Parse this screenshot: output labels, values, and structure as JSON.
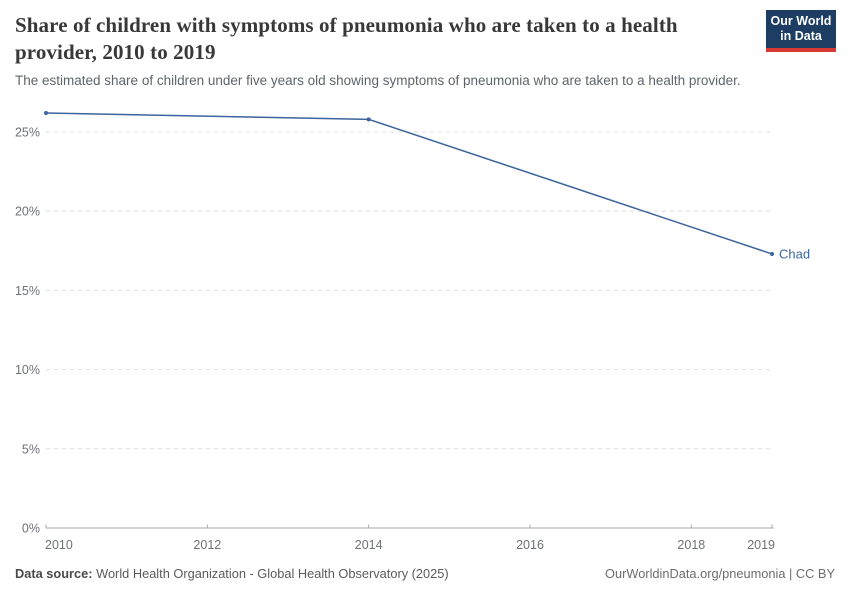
{
  "header": {
    "title": "Share of children with symptoms of pneumonia who are taken to a health provider, 2010 to 2019",
    "subtitle": "The estimated share of children under five years old showing symptoms of pneumonia who are taken to a health provider.",
    "logo_line1": "Our World",
    "logo_line2": "in Data"
  },
  "chart_data": {
    "type": "line",
    "title": "Share of children with symptoms of pneumonia who are taken to a health provider, 2010 to 2019",
    "xlabel": "",
    "ylabel": "",
    "xlim": [
      2010,
      2019
    ],
    "ylim": [
      0,
      25
    ],
    "grid": "horizontal-dashed",
    "legend_position": "end-of-line-label",
    "x_ticks": [
      2010,
      2012,
      2014,
      2016,
      2018,
      2019
    ],
    "x_tick_labels": [
      "2010",
      "2012",
      "2014",
      "2016",
      "2018",
      "2019"
    ],
    "y_ticks": [
      0,
      5,
      10,
      15,
      20,
      25
    ],
    "y_tick_labels": [
      "0%",
      "5%",
      "10%",
      "15%",
      "20%",
      "25%"
    ],
    "series": [
      {
        "name": "Chad",
        "color": "#3d649d",
        "x": [
          2010,
          2014,
          2019
        ],
        "values": [
          26.2,
          25.8,
          17.3
        ]
      }
    ]
  },
  "footer": {
    "datasource_label": "Data source:",
    "datasource_text": "World Health Organization - Global Health Observatory (2025)",
    "credit": "OurWorldinData.org/pneumonia | CC BY"
  },
  "colors": {
    "line": "#3d649d",
    "grid": "#dedede",
    "axis": "#a8aaad",
    "tick_text": "#6e7179",
    "title_text": "#383838",
    "subtitle_text": "#5f646b",
    "logo_bg": "#1d3d63",
    "logo_accent": "#d73a36"
  }
}
